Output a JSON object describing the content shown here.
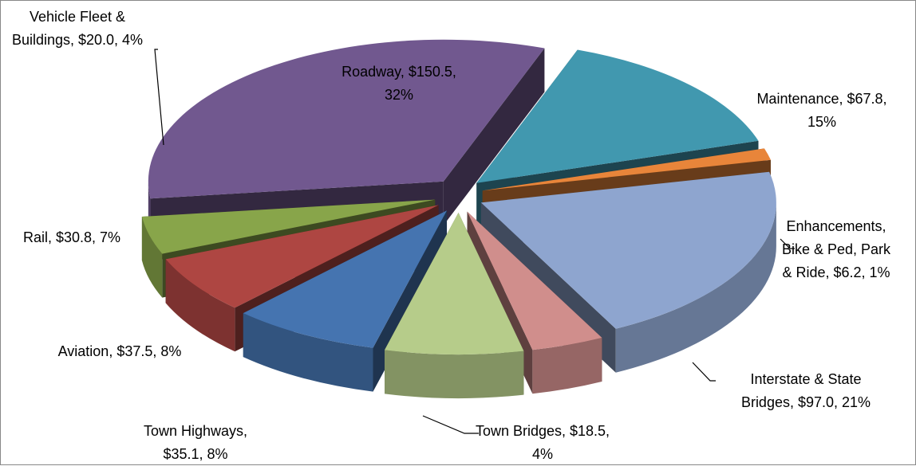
{
  "chart_data": {
    "type": "pie3d",
    "values": [
      67.8,
      6.2,
      97.0,
      18.5,
      35.1,
      37.5,
      30.8,
      20.0,
      150.5
    ],
    "value_labels": [
      "Maintenance, $67.8, 15%",
      "Enhancements, Bike & Ped, Park & Ride, $6.2, 1%",
      "Interstate & State Bridges, $97.0, 21%",
      "Town Bridges, $18.5, 4%",
      "Town Highways, $35.1, 8%",
      "Aviation, $37.5, 8%",
      "Rail, $30.8, 7%",
      "Vehicle Fleet & Buildings, $20.0, 4%",
      "Roadway, $150.5, 32%"
    ],
    "colors": [
      "#4198af",
      "#e8853a",
      "#8ea5cf",
      "#d08e8c",
      "#b6cc8a",
      "#4574b0",
      "#ae4642",
      "#88a54a",
      "#71588f"
    ]
  }
}
